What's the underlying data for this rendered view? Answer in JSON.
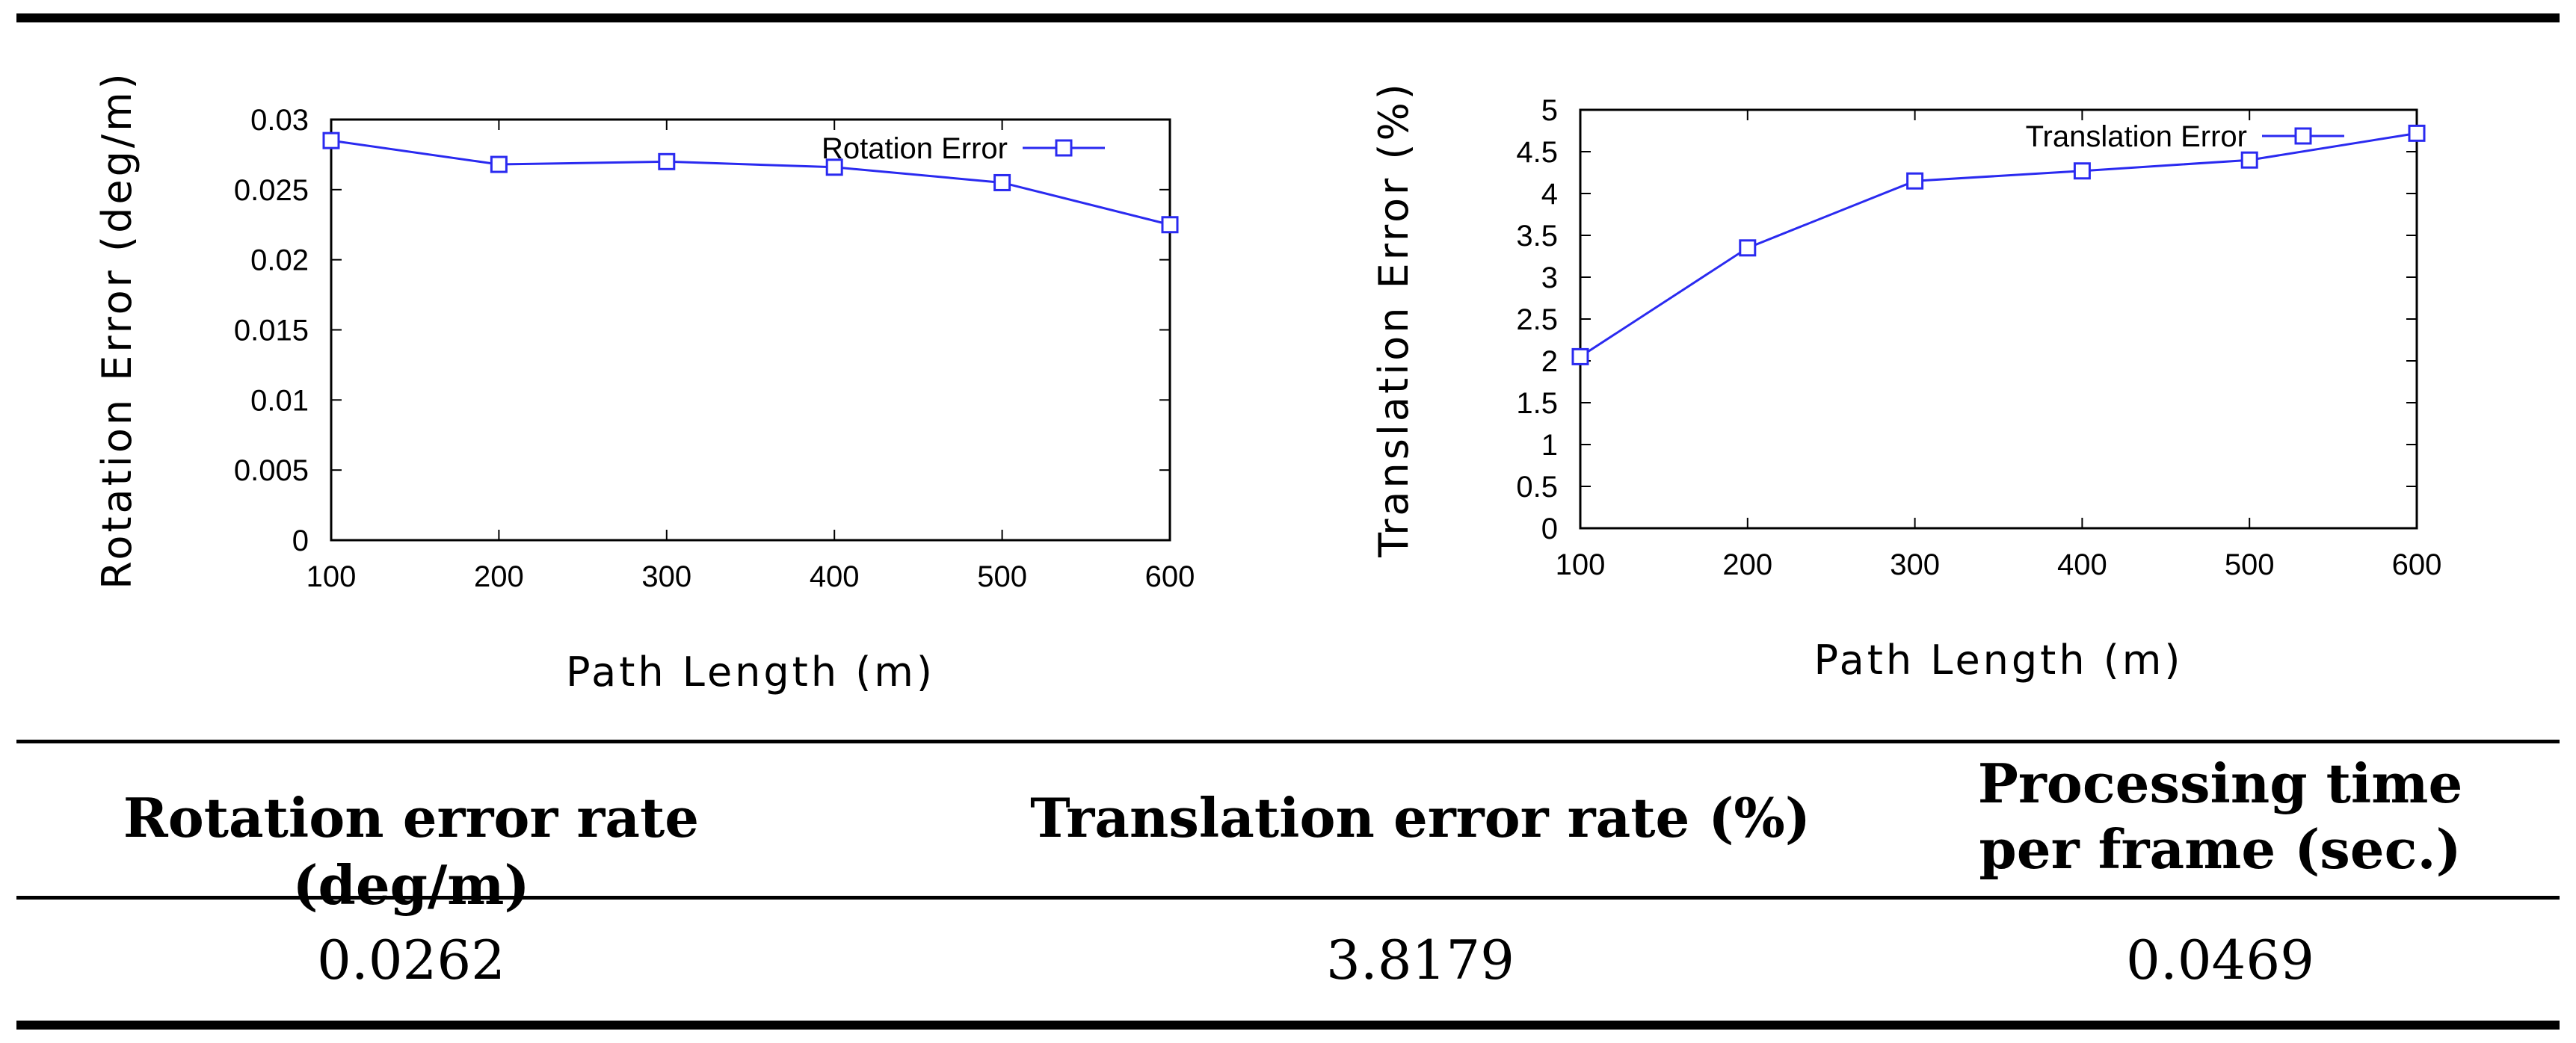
{
  "chart_data": [
    {
      "type": "line",
      "title": "",
      "xlabel": "Path Length (m)",
      "ylabel": "Rotation Error (deg/m)",
      "xlim": [
        100,
        600
      ],
      "ylim": [
        0,
        0.03
      ],
      "x_ticks": [
        "100",
        "200",
        "300",
        "400",
        "500",
        "600"
      ],
      "y_ticks": [
        "0",
        "0.005",
        "0.01",
        "0.015",
        "0.02",
        "0.025",
        "0.03"
      ],
      "legend_position": "top-right",
      "series": [
        {
          "name": "Rotation Error",
          "color": "#2a2af0",
          "marker": "square",
          "x": [
            100,
            200,
            300,
            400,
            500,
            600
          ],
          "y": [
            0.0285,
            0.0268,
            0.027,
            0.0266,
            0.0255,
            0.0225
          ]
        }
      ]
    },
    {
      "type": "line",
      "title": "",
      "xlabel": "Path Length (m)",
      "ylabel": "Translation Error (%)",
      "xlim": [
        100,
        600
      ],
      "ylim": [
        0,
        5
      ],
      "x_ticks": [
        "100",
        "200",
        "300",
        "400",
        "500",
        "600"
      ],
      "y_ticks": [
        "0",
        "0.5",
        "1",
        "1.5",
        "2",
        "2.5",
        "3",
        "3.5",
        "4",
        "4.5",
        "5"
      ],
      "legend_position": "top-right",
      "series": [
        {
          "name": "Translation Error",
          "color": "#2a2af0",
          "marker": "square",
          "x": [
            100,
            200,
            300,
            400,
            500,
            600
          ],
          "y": [
            2.05,
            3.35,
            4.15,
            4.27,
            4.4,
            4.72
          ]
        }
      ]
    }
  ],
  "table": {
    "headers": {
      "rotation": "Rotation error rate (deg/m)",
      "translation": "Translation error rate (%)",
      "processing_line1": "Processing time",
      "processing_line2": "per frame (sec.)"
    },
    "values": {
      "rotation": "0.0262",
      "translation": "3.8179",
      "processing": "0.0469"
    }
  }
}
